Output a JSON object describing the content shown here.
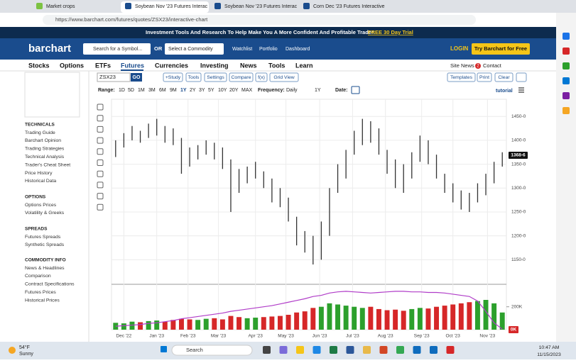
{
  "browser": {
    "tabs": [
      "Market crops",
      "Soybean Nov '23 Futures Interac",
      "Soybean Nov '23 Futures Interac",
      "Corn Dec '23 Futures Interactive"
    ],
    "url": "https://www.barchart.com/futures/quotes/ZSX23/interactive-chart"
  },
  "banner": {
    "text": "Investment Tools And Research To Help Make You A More Confident And Profitable Trader.",
    "link": "FREE 30 Day Trial"
  },
  "header": {
    "logo": "barchart",
    "search": "Search for a Symbol...",
    "or": "OR",
    "commodity": "Select a Commodity",
    "links": [
      "Watchlist",
      "Portfolio",
      "Dashboard"
    ],
    "login": "LOGIN",
    "cta": "Try Barchart for Free"
  },
  "nav": {
    "items": [
      "Stocks",
      "Options",
      "ETFs",
      "Futures",
      "Currencies",
      "Investing",
      "News",
      "Tools",
      "Learn"
    ],
    "site_news": "Site News",
    "badge": "2",
    "contact": "Contact"
  },
  "sidebar": {
    "sections": [
      {
        "title": "TECHNICALS",
        "links": [
          "Trading Guide",
          "Barchart Opinion",
          "Trading Strategies",
          "Technical Analysis",
          "Trader's Cheat Sheet",
          "Price History",
          "Historical Data"
        ]
      },
      {
        "title": "OPTIONS",
        "links": [
          "Options Prices",
          "Volatility & Greeks"
        ]
      },
      {
        "title": "SPREADS",
        "links": [
          "Futures Spreads",
          "Synthetic Spreads"
        ]
      },
      {
        "title": "COMMODITY INFO",
        "links": [
          "News & Headlines",
          "Comparison",
          "Contract Specifications",
          "Futures Prices",
          "Historical Prices"
        ]
      }
    ]
  },
  "toolbar": {
    "symbol": "ZSX23",
    "go": "GO",
    "buttons": [
      "+Study",
      "Tools",
      "Settings",
      "Compare",
      "f(x)",
      "Grid View"
    ],
    "right_buttons": [
      "Templates",
      "Print",
      "Clear"
    ],
    "range_label": "Range:",
    "ranges": [
      "1D",
      "5D",
      "1M",
      "3M",
      "6M",
      "9M",
      "1Y",
      "2Y",
      "3Y",
      "5Y",
      "10Y",
      "20Y",
      "MAX"
    ],
    "frequency_label": "Frequency:",
    "frequency": "Daily",
    "period": "1Y",
    "date_label": "Date:",
    "tutorial": "tutorial"
  },
  "chart_data": {
    "type": "ohlc",
    "high": [
      1400,
      1415,
      1430,
      1420,
      1435,
      1445,
      1430,
      1425,
      1405,
      1385,
      1390,
      1400,
      1395,
      1385,
      1360,
      1340,
      1345,
      1355,
      1335,
      1320,
      1300,
      1280,
      1240,
      1210,
      1200,
      1230,
      1300,
      1350,
      1380,
      1420,
      1445,
      1440,
      1425,
      1380,
      1360,
      1350,
      1375,
      1410,
      1400,
      1370,
      1330,
      1310,
      1295,
      1290,
      1310,
      1330,
      1355,
      1375
    ],
    "low": [
      1365,
      1385,
      1400,
      1395,
      1405,
      1410,
      1395,
      1390,
      1330,
      1345,
      1360,
      1370,
      1360,
      1340,
      1250,
      1290,
      1310,
      1320,
      1300,
      1270,
      1260,
      1230,
      1180,
      1165,
      1140,
      1150,
      1200,
      1290,
      1320,
      1370,
      1390,
      1395,
      1370,
      1330,
      1300,
      1290,
      1320,
      1355,
      1350,
      1320,
      1290,
      1270,
      1255,
      1250,
      1270,
      1285,
      1310,
      1345
    ],
    "volume": [
      60000,
      55000,
      70000,
      65000,
      75000,
      80000,
      70000,
      85000,
      95000,
      90000,
      85000,
      95000,
      100000,
      90000,
      120000,
      110000,
      100000,
      105000,
      110000,
      115000,
      120000,
      130000,
      150000,
      160000,
      190000,
      200000,
      230000,
      220000,
      210000,
      200000,
      190000,
      200000,
      180000,
      170000,
      175000,
      165000,
      180000,
      190000,
      185000,
      200000,
      210000,
      220000,
      230000,
      240000,
      250000,
      260000,
      230000,
      150000
    ],
    "open_interest": [
      30000,
      35000,
      40000,
      45000,
      55000,
      60000,
      70000,
      80000,
      95000,
      105000,
      115000,
      125000,
      135000,
      145000,
      160000,
      170000,
      180000,
      190000,
      200000,
      210000,
      225000,
      240000,
      255000,
      270000,
      290000,
      300000,
      320000,
      330000,
      335000,
      330000,
      325000,
      320000,
      325000,
      330000,
      335000,
      335000,
      330000,
      330000,
      325000,
      325000,
      320000,
      310000,
      300000,
      290000,
      250000,
      160000,
      60000,
      5000
    ],
    "ylim": [
      1100,
      1486
    ],
    "yticks": [
      {
        "value": 1150,
        "label": "1150-0"
      },
      {
        "value": 1200,
        "label": "1200-0"
      },
      {
        "value": 1250,
        "label": "1250-0"
      },
      {
        "value": 1300,
        "label": "1300-0"
      },
      {
        "value": 1350,
        "label": "1350-0"
      },
      {
        "value": 1400,
        "label": "1400-0"
      },
      {
        "value": 1450,
        "label": "1450-0"
      }
    ],
    "volume_ylim": [
      0,
      390000
    ],
    "volume_yticks": [
      {
        "value": 200000,
        "label": "200K"
      }
    ],
    "last_price": {
      "value": 1368.75,
      "label": "1368-6"
    },
    "last_volume": {
      "value": 0,
      "label": "0K"
    },
    "xlim": [
      0,
      48
    ],
    "xticks": [
      {
        "value": 1.5,
        "label": "Dec '22"
      },
      {
        "value": 5.5,
        "label": "Jan '23"
      },
      {
        "value": 9.3,
        "label": "Feb '23"
      },
      {
        "value": 13,
        "label": "Mar '23"
      },
      {
        "value": 17.5,
        "label": "Apr '23"
      },
      {
        "value": 21.2,
        "label": "May '23"
      },
      {
        "value": 25.3,
        "label": "Jun '23"
      },
      {
        "value": 29.3,
        "label": "Jul '23"
      },
      {
        "value": 33.3,
        "label": "Aug '23"
      },
      {
        "value": 37.7,
        "label": "Sep '23"
      },
      {
        "value": 41.5,
        "label": "Oct '23"
      },
      {
        "value": 45.7,
        "label": "Nov '23"
      }
    ],
    "bar_color": "#333333",
    "up_color": "#2ca02c",
    "down_color": "#d62728",
    "oi_color": "#b03cc8",
    "grid": true
  },
  "taskbar": {
    "weather_temp": "54°F",
    "weather": "Sunny",
    "search": "Search",
    "time": "10:47 AM",
    "date": "11/15/2023"
  }
}
